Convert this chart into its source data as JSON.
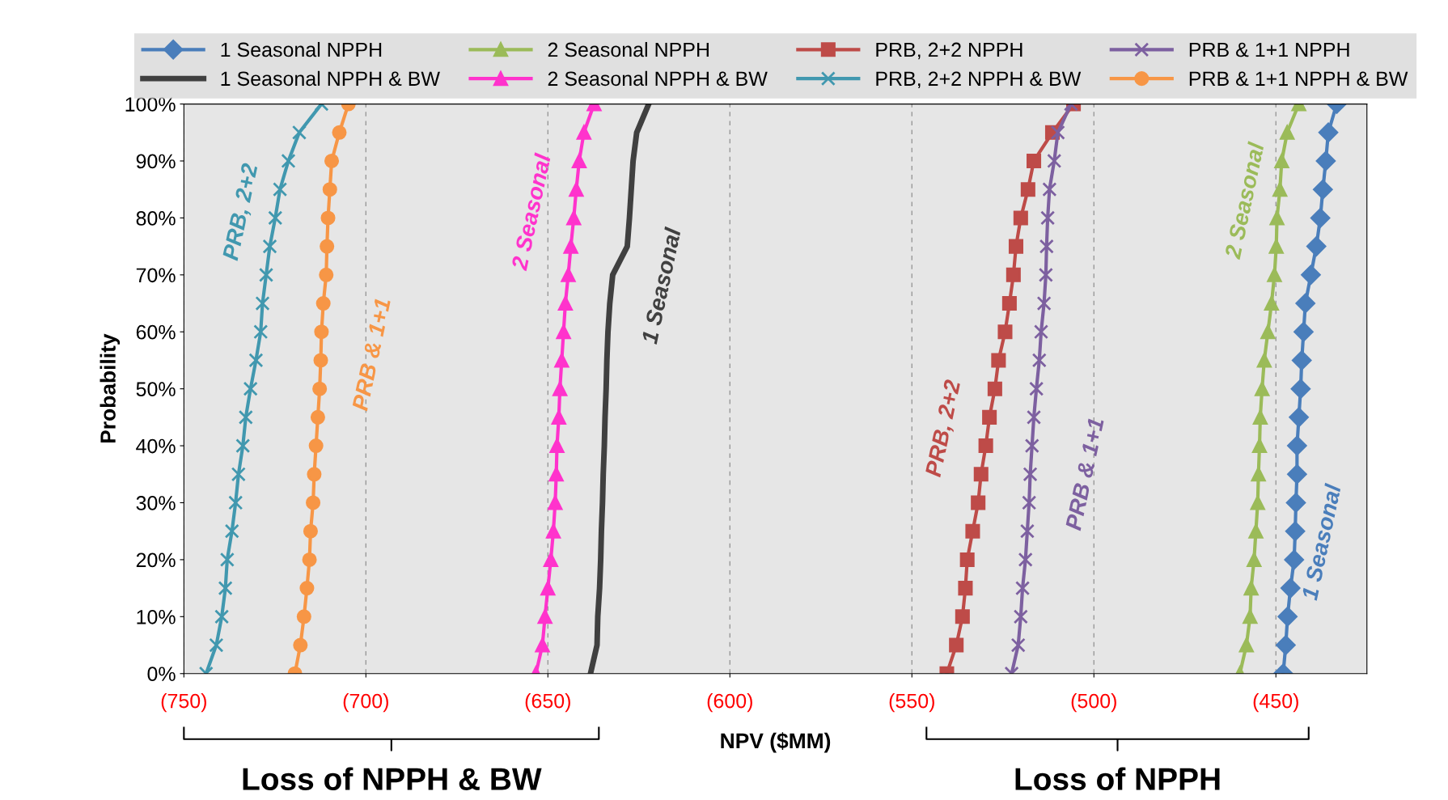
{
  "chart_data": {
    "type": "line",
    "xlabel": "NPV ($MM)",
    "ylabel": "Probability",
    "xlim": [
      -750,
      -425
    ],
    "ylim": [
      0,
      100
    ],
    "xticks": [
      {
        "value": -750,
        "label": "(750)"
      },
      {
        "value": -700,
        "label": "(700)"
      },
      {
        "value": -650,
        "label": "(650)"
      },
      {
        "value": -600,
        "label": "(600)"
      },
      {
        "value": -550,
        "label": "(550)"
      },
      {
        "value": -500,
        "label": "(500)"
      },
      {
        "value": -450,
        "label": "(450)"
      }
    ],
    "yticks": [
      {
        "value": 0,
        "label": "0%"
      },
      {
        "value": 10,
        "label": "10%"
      },
      {
        "value": 20,
        "label": "20%"
      },
      {
        "value": 30,
        "label": "30%"
      },
      {
        "value": 40,
        "label": "40%"
      },
      {
        "value": 50,
        "label": "50%"
      },
      {
        "value": 60,
        "label": "60%"
      },
      {
        "value": 70,
        "label": "70%"
      },
      {
        "value": 80,
        "label": "80%"
      },
      {
        "value": 90,
        "label": "90%"
      },
      {
        "value": 100,
        "label": "100%"
      }
    ],
    "grid": "x",
    "legend": "top",
    "line_style": "solid",
    "series": [
      {
        "name": "1 Seasonal NPPH",
        "color": "#4a7ebb",
        "marker": "diamond",
        "x": [
          -448.0,
          -447.3,
          -446.8,
          -446.0,
          -445.0,
          -444.7,
          -444.5,
          -444.2,
          -444.2,
          -443.7,
          -443.2,
          -442.9,
          -442.4,
          -441.9,
          -440.4,
          -438.9,
          -437.8,
          -437.1,
          -436.3,
          -435.6,
          -433.3
        ],
        "values": [
          0,
          5,
          10,
          15,
          20,
          25,
          30,
          35,
          40,
          45,
          50,
          55,
          60,
          65,
          70,
          75,
          80,
          85,
          90,
          95,
          100
        ]
      },
      {
        "name": "2 Seasonal NPPH",
        "color": "#9bbb59",
        "marker": "triangle",
        "x": [
          -459.9,
          -458.1,
          -457.1,
          -456.8,
          -456.0,
          -455.5,
          -455.0,
          -454.8,
          -454.5,
          -454.3,
          -453.8,
          -453.2,
          -452.2,
          -451.2,
          -450.4,
          -449.9,
          -449.7,
          -448.9,
          -448.4,
          -446.9,
          -443.7
        ],
        "values": [
          0,
          5,
          10,
          15,
          20,
          25,
          30,
          35,
          40,
          45,
          50,
          55,
          60,
          65,
          70,
          75,
          80,
          85,
          90,
          95,
          100
        ]
      },
      {
        "name": "PRB, 2+2 NPPH",
        "color": "#be4b48",
        "marker": "square",
        "x": [
          -540.4,
          -537.8,
          -536.1,
          -535.3,
          -534.8,
          -533.3,
          -531.8,
          -531.0,
          -529.7,
          -528.7,
          -527.2,
          -526.2,
          -524.4,
          -523.2,
          -522.1,
          -521.4,
          -520.1,
          -518.1,
          -516.5,
          -511.4,
          -505.6
        ],
        "values": [
          0,
          5,
          10,
          15,
          20,
          25,
          30,
          35,
          40,
          45,
          50,
          55,
          60,
          65,
          70,
          75,
          80,
          85,
          90,
          95,
          100
        ]
      },
      {
        "name": "PRB & 1+1 NPPH",
        "color": "#7d60a0",
        "marker": "cross",
        "x": [
          -522.6,
          -520.8,
          -520.1,
          -519.6,
          -518.8,
          -518.3,
          -517.8,
          -517.5,
          -517.0,
          -516.5,
          -515.8,
          -515.0,
          -514.5,
          -513.7,
          -513.2,
          -513.0,
          -512.7,
          -512.2,
          -510.9,
          -509.9,
          -506.3
        ],
        "values": [
          0,
          5,
          10,
          15,
          20,
          25,
          30,
          35,
          40,
          45,
          50,
          55,
          60,
          65,
          70,
          75,
          80,
          85,
          90,
          95,
          100
        ]
      },
      {
        "name": "1 Seasonal NPPH & BW",
        "color": "#404040",
        "marker": "none",
        "x": [
          -638.3,
          -636.5,
          -636.3,
          -635.8,
          -635.5,
          -635.3,
          -635.0,
          -634.8,
          -634.5,
          -634.3,
          -634.0,
          -633.8,
          -633.5,
          -633.0,
          -632.2,
          -628.2,
          -627.6,
          -627.1,
          -626.6,
          -625.6,
          -622.3
        ],
        "values": [
          0,
          5,
          10,
          15,
          20,
          25,
          30,
          35,
          40,
          45,
          50,
          55,
          60,
          65,
          70,
          75,
          80,
          85,
          90,
          95,
          100
        ]
      },
      {
        "name": "2 Seasonal NPPH & BW",
        "color": "#ff33cc",
        "marker": "triangle",
        "x": [
          -653.3,
          -651.5,
          -650.8,
          -650.0,
          -649.2,
          -648.5,
          -648.0,
          -647.7,
          -647.5,
          -647.0,
          -646.7,
          -646.2,
          -645.7,
          -645.2,
          -644.4,
          -643.7,
          -642.9,
          -642.2,
          -641.4,
          -640.1,
          -637.3
        ],
        "values": [
          0,
          5,
          10,
          15,
          20,
          25,
          30,
          35,
          40,
          45,
          50,
          55,
          60,
          65,
          70,
          75,
          80,
          85,
          90,
          95,
          100
        ]
      },
      {
        "name": "PRB, 2+2 NPPH & BW",
        "color": "#4198af",
        "marker": "cross",
        "x": [
          -743.9,
          -741.1,
          -739.6,
          -738.6,
          -738.1,
          -736.8,
          -735.8,
          -735.0,
          -733.8,
          -733.0,
          -731.7,
          -730.2,
          -728.9,
          -728.4,
          -727.4,
          -726.4,
          -724.9,
          -723.6,
          -721.3,
          -718.3,
          -712.2
        ],
        "values": [
          0,
          5,
          10,
          15,
          20,
          25,
          30,
          35,
          40,
          45,
          50,
          55,
          60,
          65,
          70,
          75,
          80,
          85,
          90,
          95,
          100
        ]
      },
      {
        "name": "PRB & 1+1 NPPH & BW",
        "color": "#f79646",
        "marker": "circle",
        "x": [
          -719.5,
          -718.0,
          -717.0,
          -716.2,
          -715.5,
          -715.2,
          -714.5,
          -714.2,
          -713.7,
          -713.2,
          -712.7,
          -712.4,
          -712.2,
          -711.7,
          -710.9,
          -710.7,
          -710.4,
          -709.9,
          -709.4,
          -707.3,
          -704.8
        ],
        "values": [
          0,
          5,
          10,
          15,
          20,
          25,
          30,
          35,
          40,
          45,
          50,
          55,
          60,
          65,
          70,
          75,
          80,
          85,
          90,
          95,
          100
        ]
      }
    ],
    "annotations": [
      "PRB, 2+2",
      "PRB & 1+1",
      "2 Seasonal",
      "1 Seasonal",
      "PRB, 2+2",
      "PRB & 1+1",
      "2 Seasonal",
      "1 Seasonal",
      "Loss of NPPH & BW",
      "Loss of NPPH"
    ]
  }
}
